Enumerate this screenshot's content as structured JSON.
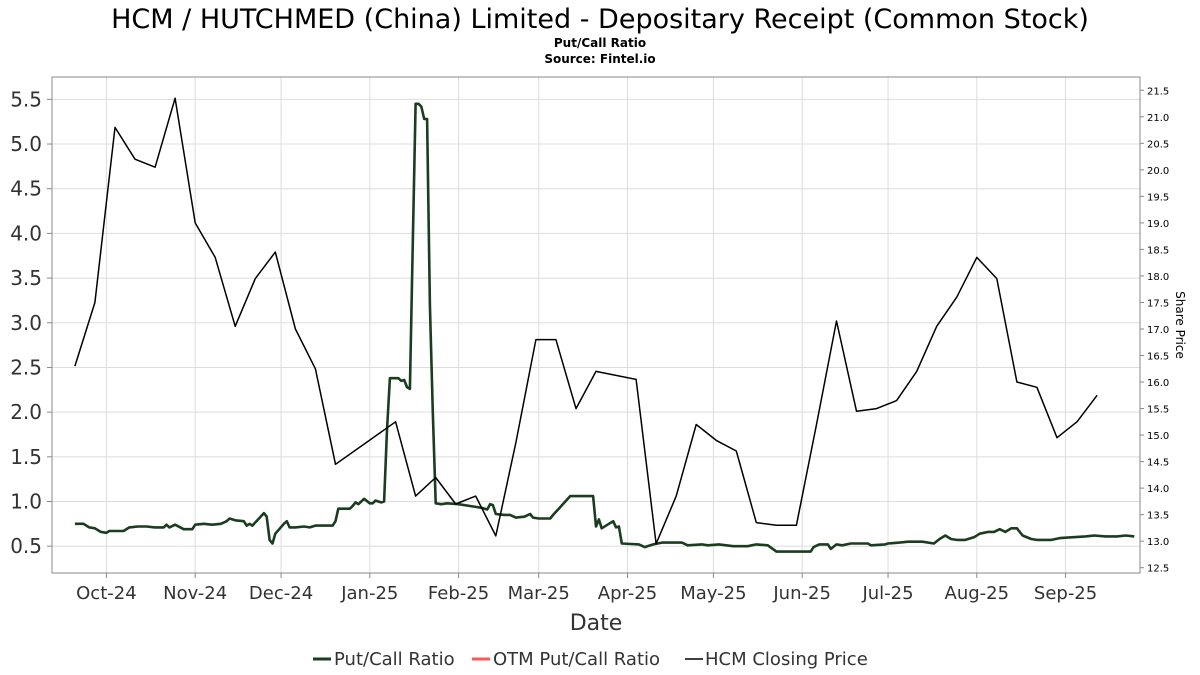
{
  "chart_data": {
    "type": "line",
    "title": "HCM / HUTCHMED (China) Limited - Depositary Receipt (Common Stock)",
    "subtitle_lines": [
      "Put/Call Ratio",
      "Source: Fintel.io"
    ],
    "xlabel": "Date",
    "ylabel_left": "",
    "ylabel_right": "Share Price",
    "x_range": [
      "2024-09-12",
      "2025-09-27"
    ],
    "ylim_left": [
      0.2,
      5.75
    ],
    "ylim_right": [
      12.4,
      21.75
    ],
    "yticks_left": [
      "0.5",
      "1.0",
      "1.5",
      "2.0",
      "2.5",
      "3.0",
      "3.5",
      "4.0",
      "4.5",
      "5.0",
      "5.5"
    ],
    "yticks_right": [
      "12.5",
      "13.0",
      "13.5",
      "14.0",
      "14.5",
      "15.0",
      "15.5",
      "16.0",
      "16.5",
      "17.0",
      "17.5",
      "18.0",
      "18.5",
      "19.0",
      "19.5",
      "20.0",
      "20.5",
      "21.0",
      "21.5"
    ],
    "xticks": [
      {
        "date": "2024-10-01",
        "label": "Oct-24"
      },
      {
        "date": "2024-11-01",
        "label": "Nov-24"
      },
      {
        "date": "2024-12-01",
        "label": "Dec-24"
      },
      {
        "date": "2025-01-01",
        "label": "Jan-25"
      },
      {
        "date": "2025-02-01",
        "label": "Feb-25"
      },
      {
        "date": "2025-03-01",
        "label": "Mar-25"
      },
      {
        "date": "2025-04-01",
        "label": "Apr-25"
      },
      {
        "date": "2025-05-01",
        "label": "May-25"
      },
      {
        "date": "2025-06-01",
        "label": "Jun-25"
      },
      {
        "date": "2025-07-01",
        "label": "Jul-25"
      },
      {
        "date": "2025-08-01",
        "label": "Aug-25"
      },
      {
        "date": "2025-09-01",
        "label": "Sep-25"
      }
    ],
    "grid": true,
    "legend_position": "bottom-center",
    "series": [
      {
        "name": "Put/Call Ratio",
        "axis": "left",
        "color": "#1a3d1f",
        "points": [
          [
            "2024-09-20",
            0.75
          ],
          [
            "2024-09-23",
            0.75
          ],
          [
            "2024-09-25",
            0.71
          ],
          [
            "2024-09-27",
            0.7
          ],
          [
            "2024-09-29",
            0.66
          ],
          [
            "2024-10-01",
            0.65
          ],
          [
            "2024-10-02",
            0.67
          ],
          [
            "2024-10-04",
            0.67
          ],
          [
            "2024-10-07",
            0.67
          ],
          [
            "2024-10-09",
            0.71
          ],
          [
            "2024-10-12",
            0.72
          ],
          [
            "2024-10-15",
            0.72
          ],
          [
            "2024-10-18",
            0.71
          ],
          [
            "2024-10-21",
            0.71
          ],
          [
            "2024-10-22",
            0.74
          ],
          [
            "2024-10-23",
            0.71
          ],
          [
            "2024-10-25",
            0.74
          ],
          [
            "2024-10-28",
            0.69
          ],
          [
            "2024-10-31",
            0.69
          ],
          [
            "2024-11-01",
            0.74
          ],
          [
            "2024-11-04",
            0.75
          ],
          [
            "2024-11-07",
            0.74
          ],
          [
            "2024-11-10",
            0.75
          ],
          [
            "2024-11-12",
            0.78
          ],
          [
            "2024-11-13",
            0.81
          ],
          [
            "2024-11-15",
            0.79
          ],
          [
            "2024-11-18",
            0.78
          ],
          [
            "2024-11-19",
            0.73
          ],
          [
            "2024-11-20",
            0.75
          ],
          [
            "2024-11-21",
            0.73
          ],
          [
            "2024-11-25",
            0.87
          ],
          [
            "2024-11-26",
            0.83
          ],
          [
            "2024-11-27",
            0.57
          ],
          [
            "2024-11-28",
            0.53
          ],
          [
            "2024-11-29",
            0.64
          ],
          [
            "2024-12-02",
            0.75
          ],
          [
            "2024-12-03",
            0.78
          ],
          [
            "2024-12-04",
            0.71
          ],
          [
            "2024-12-06",
            0.71
          ],
          [
            "2024-12-09",
            0.72
          ],
          [
            "2024-12-11",
            0.71
          ],
          [
            "2024-12-13",
            0.73
          ],
          [
            "2024-12-17",
            0.73
          ],
          [
            "2024-12-19",
            0.73
          ],
          [
            "2024-12-20",
            0.78
          ],
          [
            "2024-12-21",
            0.92
          ],
          [
            "2024-12-25",
            0.92
          ],
          [
            "2024-12-26",
            0.95
          ],
          [
            "2024-12-27",
            0.99
          ],
          [
            "2024-12-28",
            0.97
          ],
          [
            "2024-12-30",
            1.03
          ],
          [
            "2025-01-01",
            0.98
          ],
          [
            "2025-01-02",
            0.98
          ],
          [
            "2025-01-03",
            1.01
          ],
          [
            "2025-01-05",
            0.99
          ],
          [
            "2025-01-06",
            1.0
          ],
          [
            "2025-01-07",
            1.8
          ],
          [
            "2025-01-08",
            2.38
          ],
          [
            "2025-01-11",
            2.38
          ],
          [
            "2025-01-12",
            2.35
          ],
          [
            "2025-01-13",
            2.36
          ],
          [
            "2025-01-14",
            2.28
          ],
          [
            "2025-01-15",
            2.26
          ],
          [
            "2025-01-16",
            3.9
          ],
          [
            "2025-01-17",
            5.45
          ],
          [
            "2025-01-18",
            5.45
          ],
          [
            "2025-01-19",
            5.42
          ],
          [
            "2025-01-20",
            5.28
          ],
          [
            "2025-01-21",
            5.28
          ],
          [
            "2025-01-22",
            3.2
          ],
          [
            "2025-01-23",
            2.0
          ],
          [
            "2025-01-24",
            0.98
          ],
          [
            "2025-01-26",
            0.97
          ],
          [
            "2025-01-28",
            0.98
          ],
          [
            "2025-02-01",
            0.97
          ],
          [
            "2025-02-05",
            0.95
          ],
          [
            "2025-02-09",
            0.93
          ],
          [
            "2025-02-11",
            0.91
          ],
          [
            "2025-02-12",
            0.97
          ],
          [
            "2025-02-13",
            0.96
          ],
          [
            "2025-02-14",
            0.86
          ],
          [
            "2025-02-17",
            0.85
          ],
          [
            "2025-02-19",
            0.85
          ],
          [
            "2025-02-21",
            0.82
          ],
          [
            "2025-02-24",
            0.83
          ],
          [
            "2025-02-26",
            0.86
          ],
          [
            "2025-02-27",
            0.82
          ],
          [
            "2025-03-01",
            0.81
          ],
          [
            "2025-03-05",
            0.81
          ],
          [
            "2025-03-06",
            0.85
          ],
          [
            "2025-03-08",
            0.92
          ],
          [
            "2025-03-10",
            0.99
          ],
          [
            "2025-03-12",
            1.06
          ],
          [
            "2025-03-16",
            1.06
          ],
          [
            "2025-03-20",
            1.06
          ],
          [
            "2025-03-21",
            0.72
          ],
          [
            "2025-03-22",
            0.8
          ],
          [
            "2025-03-23",
            0.7
          ],
          [
            "2025-03-25",
            0.74
          ],
          [
            "2025-03-27",
            0.78
          ],
          [
            "2025-03-28",
            0.71
          ],
          [
            "2025-03-29",
            0.72
          ],
          [
            "2025-03-30",
            0.53
          ],
          [
            "2025-04-05",
            0.52
          ],
          [
            "2025-04-07",
            0.49
          ],
          [
            "2025-04-10",
            0.52
          ],
          [
            "2025-04-13",
            0.54
          ],
          [
            "2025-04-20",
            0.54
          ],
          [
            "2025-04-22",
            0.51
          ],
          [
            "2025-04-27",
            0.52
          ],
          [
            "2025-04-29",
            0.51
          ],
          [
            "2025-05-03",
            0.52
          ],
          [
            "2025-05-08",
            0.5
          ],
          [
            "2025-05-13",
            0.5
          ],
          [
            "2025-05-16",
            0.52
          ],
          [
            "2025-05-20",
            0.51
          ],
          [
            "2025-05-23",
            0.44
          ],
          [
            "2025-05-28",
            0.44
          ],
          [
            "2025-06-02",
            0.44
          ],
          [
            "2025-06-04",
            0.44
          ],
          [
            "2025-06-05",
            0.49
          ],
          [
            "2025-06-07",
            0.52
          ],
          [
            "2025-06-10",
            0.52
          ],
          [
            "2025-06-11",
            0.47
          ],
          [
            "2025-06-13",
            0.52
          ],
          [
            "2025-06-15",
            0.51
          ],
          [
            "2025-06-18",
            0.53
          ],
          [
            "2025-06-24",
            0.53
          ],
          [
            "2025-06-25",
            0.51
          ],
          [
            "2025-06-30",
            0.52
          ],
          [
            "2025-07-01",
            0.53
          ],
          [
            "2025-07-05",
            0.54
          ],
          [
            "2025-07-08",
            0.55
          ],
          [
            "2025-07-13",
            0.55
          ],
          [
            "2025-07-17",
            0.53
          ],
          [
            "2025-07-19",
            0.58
          ],
          [
            "2025-07-21",
            0.62
          ],
          [
            "2025-07-23",
            0.58
          ],
          [
            "2025-07-25",
            0.57
          ],
          [
            "2025-07-28",
            0.57
          ],
          [
            "2025-07-31",
            0.6
          ],
          [
            "2025-08-02",
            0.64
          ],
          [
            "2025-08-05",
            0.66
          ],
          [
            "2025-08-07",
            0.66
          ],
          [
            "2025-08-09",
            0.69
          ],
          [
            "2025-08-11",
            0.66
          ],
          [
            "2025-08-13",
            0.7
          ],
          [
            "2025-08-15",
            0.7
          ],
          [
            "2025-08-17",
            0.62
          ],
          [
            "2025-08-20",
            0.58
          ],
          [
            "2025-08-22",
            0.57
          ],
          [
            "2025-08-27",
            0.57
          ],
          [
            "2025-08-30",
            0.59
          ],
          [
            "2025-09-03",
            0.6
          ],
          [
            "2025-09-08",
            0.61
          ],
          [
            "2025-09-11",
            0.62
          ],
          [
            "2025-09-15",
            0.61
          ],
          [
            "2025-09-19",
            0.61
          ],
          [
            "2025-09-22",
            0.62
          ],
          [
            "2025-09-25",
            0.61
          ]
        ]
      },
      {
        "name": "OTM Put/Call Ratio",
        "axis": "left",
        "color": "#ff5555",
        "points": []
      },
      {
        "name": "HCM Closing Price",
        "axis": "right",
        "color": "#000000",
        "points": [
          [
            "2024-09-20",
            16.3
          ],
          [
            "2024-09-27",
            17.5
          ],
          [
            "2024-10-04",
            20.8
          ],
          [
            "2024-10-11",
            20.2
          ],
          [
            "2024-10-18",
            20.05
          ],
          [
            "2024-10-25",
            21.35
          ],
          [
            "2024-11-01",
            19.0
          ],
          [
            "2024-11-08",
            18.35
          ],
          [
            "2024-11-15",
            17.05
          ],
          [
            "2024-11-22",
            17.95
          ],
          [
            "2024-11-29",
            18.45
          ],
          [
            "2024-12-06",
            17.0
          ],
          [
            "2024-12-13",
            16.25
          ],
          [
            "2024-12-20",
            14.45
          ],
          [
            "2025-01-10",
            15.25
          ],
          [
            "2025-01-17",
            13.85
          ],
          [
            "2025-01-24",
            14.2
          ],
          [
            "2025-01-31",
            13.7
          ],
          [
            "2025-02-07",
            13.85
          ],
          [
            "2025-02-14",
            13.1
          ],
          [
            "2025-02-21",
            14.85
          ],
          [
            "2025-02-28",
            16.8
          ],
          [
            "2025-03-07",
            16.8
          ],
          [
            "2025-03-14",
            15.5
          ],
          [
            "2025-03-21",
            16.2
          ],
          [
            "2025-04-04",
            16.05
          ],
          [
            "2025-04-11",
            12.95
          ],
          [
            "2025-04-18",
            13.85
          ],
          [
            "2025-04-25",
            15.2
          ],
          [
            "2025-05-02",
            14.9
          ],
          [
            "2025-05-09",
            14.7
          ],
          [
            "2025-05-16",
            13.35
          ],
          [
            "2025-05-23",
            13.3
          ],
          [
            "2025-05-30",
            13.3
          ],
          [
            "2025-06-06",
            15.2
          ],
          [
            "2025-06-13",
            17.15
          ],
          [
            "2025-06-20",
            15.45
          ],
          [
            "2025-06-27",
            15.5
          ],
          [
            "2025-07-04",
            15.65
          ],
          [
            "2025-07-11",
            16.2
          ],
          [
            "2025-07-18",
            17.05
          ],
          [
            "2025-07-25",
            17.6
          ],
          [
            "2025-08-01",
            18.35
          ],
          [
            "2025-08-08",
            17.95
          ],
          [
            "2025-08-15",
            16.0
          ],
          [
            "2025-08-22",
            15.9
          ],
          [
            "2025-08-29",
            14.95
          ],
          [
            "2025-09-05",
            15.25
          ],
          [
            "2025-09-12",
            15.75
          ]
        ]
      }
    ]
  }
}
